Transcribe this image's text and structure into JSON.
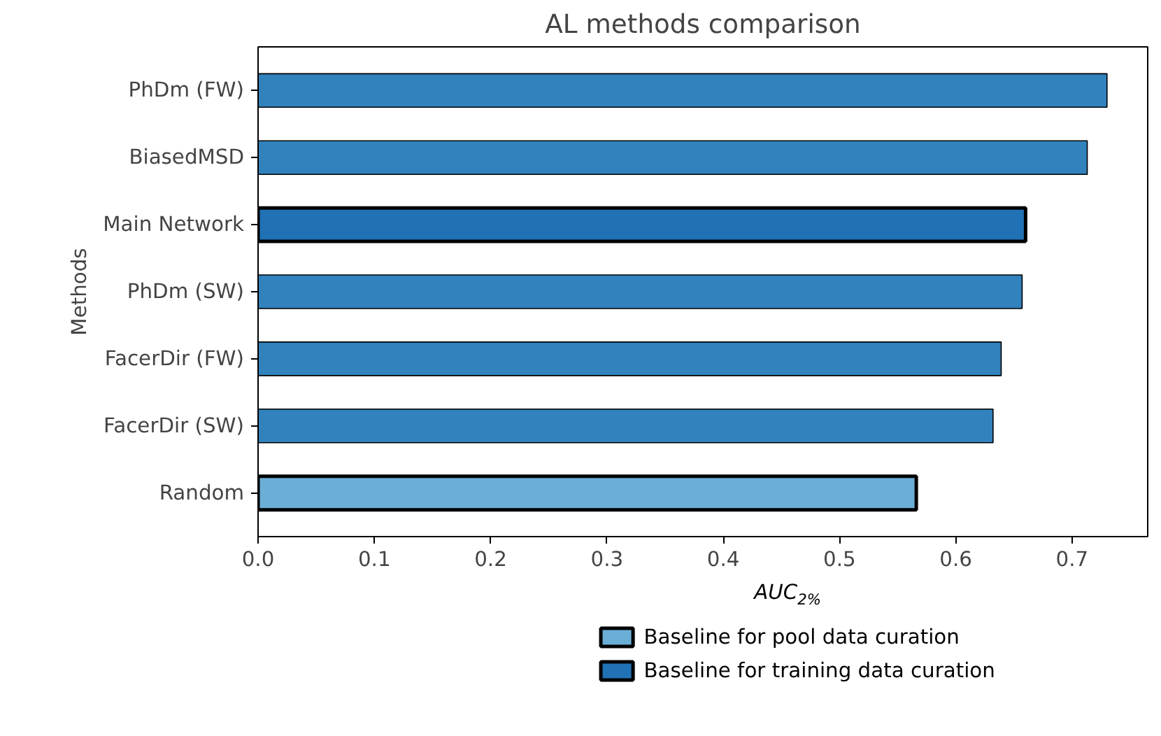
{
  "chart_data": {
    "type": "bar",
    "orientation": "horizontal",
    "title": "AL methods comparison",
    "xlabel": "AUC$_{2%}$",
    "ylabel": "Methods",
    "categories": [
      "PhDm (FW)",
      "BiasedMSD",
      "Main Network",
      "PhDm (SW)",
      "FacerDir (FW)",
      "FacerDir (SW)",
      "Random"
    ],
    "series": [
      {
        "color": "#3182bd",
        "values": [
          0.73,
          0.713,
          null,
          0.657,
          0.639,
          0.632,
          null
        ]
      },
      {
        "name": "Baseline for pool data curation",
        "color": "#6baed6",
        "values": [
          null,
          null,
          null,
          null,
          null,
          null,
          0.566
        ]
      },
      {
        "name": "Baseline for training data curation",
        "color": "#2171b5",
        "values": [
          null,
          null,
          0.66,
          null,
          null,
          null,
          null
        ]
      }
    ],
    "xlim": [
      0,
      0.765
    ],
    "xticks": [
      {
        "value": 0,
        "label": "0.0"
      },
      0.1,
      0.2,
      0.3,
      0.4,
      0.5,
      0.6,
      0.7
    ],
    "grid": false,
    "legend": "bottom"
  }
}
